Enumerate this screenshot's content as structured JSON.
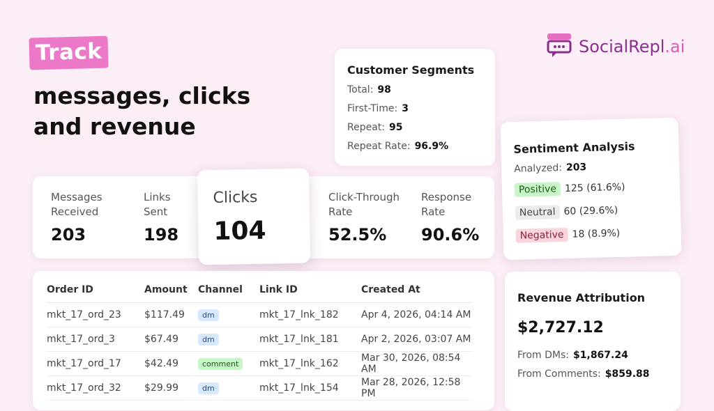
{
  "hero": {
    "badge": "Track",
    "line1": "messages, clicks",
    "line2": "and revenue"
  },
  "logo": {
    "name": "SocialRepl",
    "suffix": ".ai",
    "icon": "storefront-chat-icon",
    "color": "#8a2f8c"
  },
  "segments": {
    "title": "Customer Segments",
    "rows": [
      {
        "label": "Total:",
        "value": "98"
      },
      {
        "label": "First-Time:",
        "value": "3"
      },
      {
        "label": "Repeat:",
        "value": "95"
      },
      {
        "label": "Repeat Rate:",
        "value": "96.9%"
      }
    ]
  },
  "sentiment": {
    "title": "Sentiment Analysis",
    "analyzed_label": "Analyzed:",
    "analyzed_value": "203",
    "rows": [
      {
        "label": "Positive",
        "value": "125 (61.6%)"
      },
      {
        "label": "Neutral",
        "value": "60 (29.6%)"
      },
      {
        "label": "Negative",
        "value": "18 (8.9%)"
      }
    ]
  },
  "metrics": [
    {
      "label": "Messages Received",
      "value": "203"
    },
    {
      "label": "Links Sent",
      "value": "198"
    },
    {
      "label": "Clicks",
      "value": "104"
    },
    {
      "label": "Click-Through Rate",
      "value": "52.5%"
    },
    {
      "label": "Response Rate",
      "value": "90.6%"
    }
  ],
  "orders": {
    "headers": [
      "Order ID",
      "Amount",
      "Channel",
      "Link ID",
      "Created At"
    ],
    "rows": [
      [
        "mkt_17_ord_23",
        "$117.49",
        "dm",
        "mkt_17_lnk_182",
        "Apr 4, 2026, 04:14 AM"
      ],
      [
        "mkt_17_ord_3",
        "$67.49",
        "dm",
        "mkt_17_lnk_181",
        "Apr 2, 2026, 03:07 AM"
      ],
      [
        "mkt_17_ord_17",
        "$42.49",
        "comment",
        "mkt_17_lnk_162",
        "Mar 30, 2026, 08:54 AM"
      ],
      [
        "mkt_17_ord_32",
        "$29.99",
        "dm",
        "mkt_17_lnk_154",
        "Mar 28, 2026, 12:58 PM"
      ]
    ]
  },
  "revenue": {
    "title": "Revenue Attribution",
    "total": "$2,727.12",
    "rows": [
      {
        "label": "From DMs:",
        "value": "$1,867.24"
      },
      {
        "label": "From Comments:",
        "value": "$859.88"
      }
    ]
  },
  "colors": {
    "background": "#fbeef7",
    "accent": "#ec79c8",
    "positive": "#c8f5c8",
    "negative": "#fbd5dd",
    "dm_tag": "#d7e9ff"
  }
}
